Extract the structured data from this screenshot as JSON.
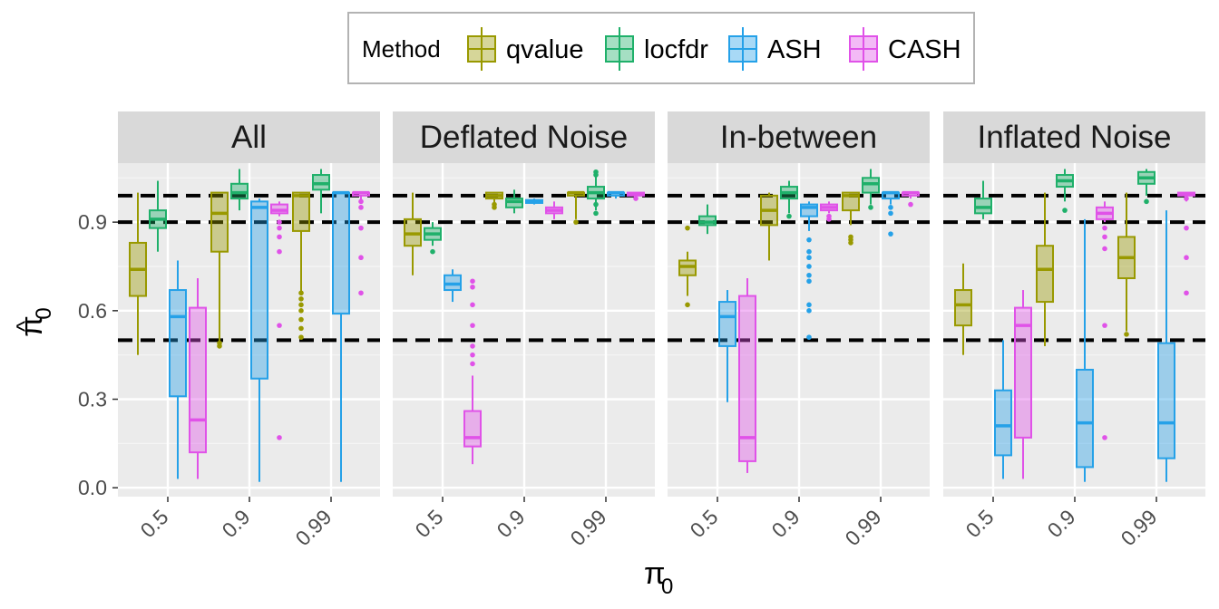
{
  "chart_data": {
    "type": "boxplot",
    "legend": {
      "title": "Method",
      "placement": "top",
      "entries": [
        {
          "name": "qvalue",
          "color": "#999900"
        },
        {
          "name": "locfdr",
          "color": "#1FB06A"
        },
        {
          "name": "ASH",
          "color": "#25A1E8"
        },
        {
          "name": "CASH",
          "color": "#E052E8"
        }
      ]
    },
    "ylabel_symbol": "π",
    "ylabel_sub": "0",
    "ylabel_hat": "^",
    "xlabel_symbol": "π",
    "xlabel_sub": "0",
    "categories": [
      "0.5",
      "0.9",
      "0.99"
    ],
    "y_ticks": [
      "0.0",
      "0.3",
      "0.6",
      "0.9"
    ],
    "y_tick_values": [
      0.0,
      0.3,
      0.6,
      0.9
    ],
    "ylim": [
      -0.03,
      1.1
    ],
    "reference_lines": [
      0.5,
      0.9,
      0.99
    ],
    "grid": true,
    "panels": [
      {
        "title": "All",
        "boxes": [
          {
            "cat": 0,
            "series": 0,
            "whisker": [
              0.45,
              1.0
            ],
            "q": [
              0.65,
              0.74,
              0.83
            ],
            "outliers": []
          },
          {
            "cat": 0,
            "series": 1,
            "whisker": [
              0.8,
              1.04
            ],
            "q": [
              0.88,
              0.91,
              0.94
            ],
            "outliers": []
          },
          {
            "cat": 0,
            "series": 2,
            "whisker": [
              0.03,
              0.77
            ],
            "q": [
              0.31,
              0.58,
              0.67
            ],
            "outliers": []
          },
          {
            "cat": 0,
            "series": 3,
            "whisker": [
              0.03,
              0.71
            ],
            "q": [
              0.12,
              0.23,
              0.61
            ],
            "outliers": []
          },
          {
            "cat": 1,
            "series": 0,
            "whisker": [
              0.49,
              1.0
            ],
            "q": [
              0.8,
              0.93,
              1.0
            ],
            "outliers": [
              0.48,
              0.49
            ]
          },
          {
            "cat": 1,
            "series": 1,
            "whisker": [
              0.94,
              1.08
            ],
            "q": [
              0.98,
              1.0,
              1.03
            ],
            "outliers": []
          },
          {
            "cat": 1,
            "series": 2,
            "whisker": [
              0.02,
              0.98
            ],
            "q": [
              0.37,
              0.95,
              0.97
            ],
            "outliers": []
          },
          {
            "cat": 1,
            "series": 3,
            "whisker": [
              0.92,
              0.97
            ],
            "q": [
              0.93,
              0.94,
              0.96
            ],
            "outliers": [
              0.17,
              0.55,
              0.8,
              0.85,
              0.88,
              0.9
            ]
          },
          {
            "cat": 2,
            "series": 0,
            "whisker": [
              0.66,
              1.0
            ],
            "q": [
              0.87,
              0.99,
              1.0
            ],
            "outliers": [
              0.51,
              0.54,
              0.57,
              0.6,
              0.62,
              0.64,
              0.66
            ]
          },
          {
            "cat": 2,
            "series": 1,
            "whisker": [
              0.93,
              1.08
            ],
            "q": [
              1.01,
              1.03,
              1.06
            ],
            "outliers": []
          },
          {
            "cat": 2,
            "series": 2,
            "whisker": [
              0.02,
              1.0
            ],
            "q": [
              0.59,
              1.0,
              1.0
            ],
            "outliers": []
          },
          {
            "cat": 2,
            "series": 3,
            "whisker": [
              0.97,
              1.0
            ],
            "q": [
              0.99,
              1.0,
              1.0
            ],
            "outliers": [
              0.66,
              0.78,
              0.88,
              0.95,
              0.97
            ]
          }
        ]
      },
      {
        "title": "Deflated Noise",
        "boxes": [
          {
            "cat": 0,
            "series": 0,
            "whisker": [
              0.72,
              1.0
            ],
            "q": [
              0.82,
              0.86,
              0.91
            ],
            "outliers": []
          },
          {
            "cat": 0,
            "series": 1,
            "whisker": [
              0.82,
              0.9
            ],
            "q": [
              0.84,
              0.86,
              0.88
            ],
            "outliers": [
              0.8
            ]
          },
          {
            "cat": 0,
            "series": 2,
            "whisker": [
              0.63,
              0.74
            ],
            "q": [
              0.67,
              0.69,
              0.72
            ],
            "outliers": []
          },
          {
            "cat": 0,
            "series": 3,
            "whisker": [
              0.08,
              0.38
            ],
            "q": [
              0.14,
              0.17,
              0.26
            ],
            "outliers": [
              0.42,
              0.45,
              0.48,
              0.55,
              0.62,
              0.68,
              0.7
            ]
          },
          {
            "cat": 1,
            "series": 0,
            "whisker": [
              0.96,
              1.0
            ],
            "q": [
              0.98,
              0.99,
              1.0
            ],
            "outliers": [
              0.95,
              0.96
            ]
          },
          {
            "cat": 1,
            "series": 1,
            "whisker": [
              0.93,
              1.01
            ],
            "q": [
              0.95,
              0.97,
              0.98
            ],
            "outliers": []
          },
          {
            "cat": 1,
            "series": 2,
            "whisker": [
              0.96,
              0.98
            ],
            "q": [
              0.965,
              0.97,
              0.975
            ],
            "outliers": []
          },
          {
            "cat": 1,
            "series": 3,
            "whisker": [
              0.91,
              0.97
            ],
            "q": [
              0.93,
              0.94,
              0.95
            ],
            "outliers": []
          },
          {
            "cat": 2,
            "series": 0,
            "whisker": [
              0.91,
              1.0
            ],
            "q": [
              0.99,
              1.0,
              1.0
            ],
            "outliers": [
              0.9
            ]
          },
          {
            "cat": 2,
            "series": 1,
            "whisker": [
              0.94,
              1.07
            ],
            "q": [
              0.98,
              1.0,
              1.02
            ],
            "outliers": [
              0.93,
              0.96,
              1.06,
              1.07
            ]
          },
          {
            "cat": 2,
            "series": 2,
            "whisker": [
              0.98,
              1.0
            ],
            "q": [
              0.99,
              1.0,
              1.0
            ],
            "outliers": []
          },
          {
            "cat": 2,
            "series": 3,
            "whisker": [
              0.98,
              1.0
            ],
            "q": [
              0.99,
              0.995,
              1.0
            ],
            "outliers": [
              0.98
            ]
          }
        ]
      },
      {
        "title": "In-between",
        "boxes": [
          {
            "cat": 0,
            "series": 0,
            "whisker": [
              0.65,
              0.8
            ],
            "q": [
              0.72,
              0.75,
              0.77
            ],
            "outliers": [
              0.62,
              0.88
            ]
          },
          {
            "cat": 0,
            "series": 1,
            "whisker": [
              0.86,
              0.96
            ],
            "q": [
              0.89,
              0.9,
              0.92
            ],
            "outliers": []
          },
          {
            "cat": 0,
            "series": 2,
            "whisker": [
              0.29,
              0.67
            ],
            "q": [
              0.48,
              0.58,
              0.63
            ],
            "outliers": []
          },
          {
            "cat": 0,
            "series": 3,
            "whisker": [
              0.05,
              0.71
            ],
            "q": [
              0.09,
              0.17,
              0.65
            ],
            "outliers": []
          },
          {
            "cat": 1,
            "series": 0,
            "whisker": [
              0.77,
              1.0
            ],
            "q": [
              0.89,
              0.94,
              0.99
            ],
            "outliers": []
          },
          {
            "cat": 1,
            "series": 1,
            "whisker": [
              0.93,
              1.04
            ],
            "q": [
              0.98,
              1.0,
              1.02
            ],
            "outliers": [
              0.92
            ]
          },
          {
            "cat": 1,
            "series": 2,
            "whisker": [
              0.87,
              0.97
            ],
            "q": [
              0.92,
              0.95,
              0.96
            ],
            "outliers": [
              0.51,
              0.6,
              0.62,
              0.7,
              0.72,
              0.75,
              0.78,
              0.8,
              0.84
            ]
          },
          {
            "cat": 1,
            "series": 3,
            "whisker": [
              0.93,
              0.97
            ],
            "q": [
              0.94,
              0.95,
              0.96
            ],
            "outliers": [
              0.91,
              0.92
            ]
          },
          {
            "cat": 2,
            "series": 0,
            "whisker": [
              0.89,
              1.0
            ],
            "q": [
              0.94,
              0.99,
              1.0
            ],
            "outliers": [
              0.83,
              0.84,
              0.85
            ]
          },
          {
            "cat": 2,
            "series": 1,
            "whisker": [
              0.96,
              1.08
            ],
            "q": [
              1.0,
              1.03,
              1.05
            ],
            "outliers": [
              0.95
            ]
          },
          {
            "cat": 2,
            "series": 2,
            "whisker": [
              0.96,
              1.0
            ],
            "q": [
              0.98,
              1.0,
              1.0
            ],
            "outliers": [
              0.86,
              0.93,
              0.95
            ]
          },
          {
            "cat": 2,
            "series": 3,
            "whisker": [
              0.98,
              1.0
            ],
            "q": [
              0.99,
              1.0,
              1.0
            ],
            "outliers": [
              0.96
            ]
          }
        ]
      },
      {
        "title": "Inflated Noise",
        "boxes": [
          {
            "cat": 0,
            "series": 0,
            "whisker": [
              0.45,
              0.76
            ],
            "q": [
              0.55,
              0.62,
              0.67
            ],
            "outliers": []
          },
          {
            "cat": 0,
            "series": 1,
            "whisker": [
              0.91,
              1.04
            ],
            "q": [
              0.93,
              0.95,
              0.98
            ],
            "outliers": []
          },
          {
            "cat": 0,
            "series": 2,
            "whisker": [
              0.03,
              0.5
            ],
            "q": [
              0.11,
              0.21,
              0.33
            ],
            "outliers": []
          },
          {
            "cat": 0,
            "series": 3,
            "whisker": [
              0.03,
              0.67
            ],
            "q": [
              0.17,
              0.55,
              0.61
            ],
            "outliers": []
          },
          {
            "cat": 1,
            "series": 0,
            "whisker": [
              0.48,
              1.0
            ],
            "q": [
              0.63,
              0.74,
              0.82
            ],
            "outliers": []
          },
          {
            "cat": 1,
            "series": 1,
            "whisker": [
              0.97,
              1.08
            ],
            "q": [
              1.02,
              1.04,
              1.06
            ],
            "outliers": [
              0.94
            ]
          },
          {
            "cat": 1,
            "series": 2,
            "whisker": [
              0.02,
              0.91
            ],
            "q": [
              0.07,
              0.22,
              0.4
            ],
            "outliers": []
          },
          {
            "cat": 1,
            "series": 3,
            "whisker": [
              0.9,
              0.97
            ],
            "q": [
              0.91,
              0.93,
              0.95
            ],
            "outliers": [
              0.17,
              0.55,
              0.81,
              0.85,
              0.88
            ]
          },
          {
            "cat": 2,
            "series": 0,
            "whisker": [
              0.53,
              1.0
            ],
            "q": [
              0.71,
              0.78,
              0.85
            ],
            "outliers": [
              0.52
            ]
          },
          {
            "cat": 2,
            "series": 1,
            "whisker": [
              0.99,
              1.08
            ],
            "q": [
              1.03,
              1.05,
              1.07
            ],
            "outliers": [
              0.97
            ]
          },
          {
            "cat": 2,
            "series": 2,
            "whisker": [
              0.02,
              0.94
            ],
            "q": [
              0.1,
              0.22,
              0.49
            ],
            "outliers": []
          },
          {
            "cat": 2,
            "series": 3,
            "whisker": [
              0.97,
              1.0
            ],
            "q": [
              0.99,
              0.995,
              1.0
            ],
            "outliers": [
              0.66,
              0.78,
              0.88,
              0.98
            ]
          }
        ]
      }
    ]
  }
}
